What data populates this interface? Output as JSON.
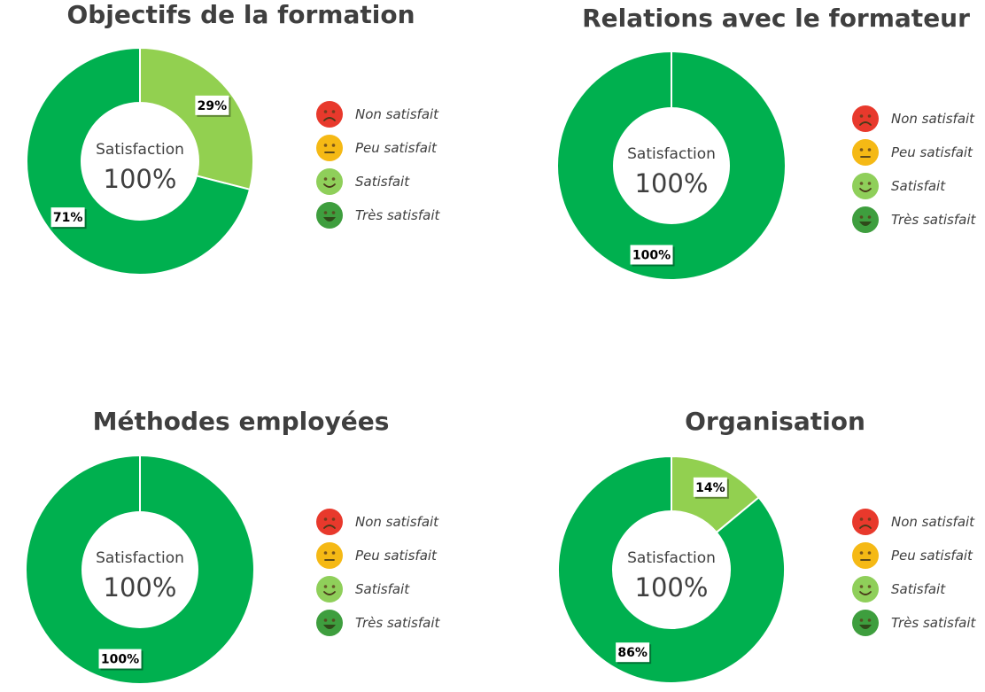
{
  "colors": {
    "very_satisfied": "#00b04f",
    "satisfied": "#92d050",
    "slice_border": "#ffffff",
    "label_bg": "#ffffff",
    "text": "#3f3f3f"
  },
  "legend_items": [
    {
      "label": "Non satisfait",
      "icon": "frown-face-icon",
      "color": "#e8392c"
    },
    {
      "label": "Peu satisfait",
      "icon": "neutral-face-icon",
      "color": "#f5b915"
    },
    {
      "label": "Satisfait",
      "icon": "smile-face-icon",
      "color": "#8fcf5a"
    },
    {
      "label": "Très satisfait",
      "icon": "grin-face-icon",
      "color": "#3e9e3e"
    }
  ],
  "chart_data": [
    {
      "type": "pie",
      "title": "Objectifs de la formation",
      "center_label": "Satisfaction",
      "center_value": "100%",
      "slices": [
        {
          "label": "Satisfait",
          "value": 29,
          "data_label": "29%",
          "color": "#92d050"
        },
        {
          "label": "Très satisfait",
          "value": 71,
          "data_label": "71%",
          "color": "#00b04f"
        }
      ]
    },
    {
      "type": "pie",
      "title": "Relations avec le formateur",
      "center_label": "Satisfaction",
      "center_value": "100%",
      "slices": [
        {
          "label": "Très satisfait",
          "value": 100,
          "data_label": "100%",
          "color": "#00b04f"
        }
      ]
    },
    {
      "type": "pie",
      "title": "Méthodes employées",
      "center_label": "Satisfaction",
      "center_value": "100%",
      "slices": [
        {
          "label": "Très satisfait",
          "value": 100,
          "data_label": "100%",
          "color": "#00b04f"
        }
      ]
    },
    {
      "type": "pie",
      "title": "Organisation",
      "center_label": "Satisfaction",
      "center_value": "100%",
      "slices": [
        {
          "label": "Satisfait",
          "value": 14,
          "data_label": "14%",
          "color": "#92d050"
        },
        {
          "label": "Très satisfait",
          "value": 86,
          "data_label": "86%",
          "color": "#00b04f"
        }
      ]
    }
  ]
}
